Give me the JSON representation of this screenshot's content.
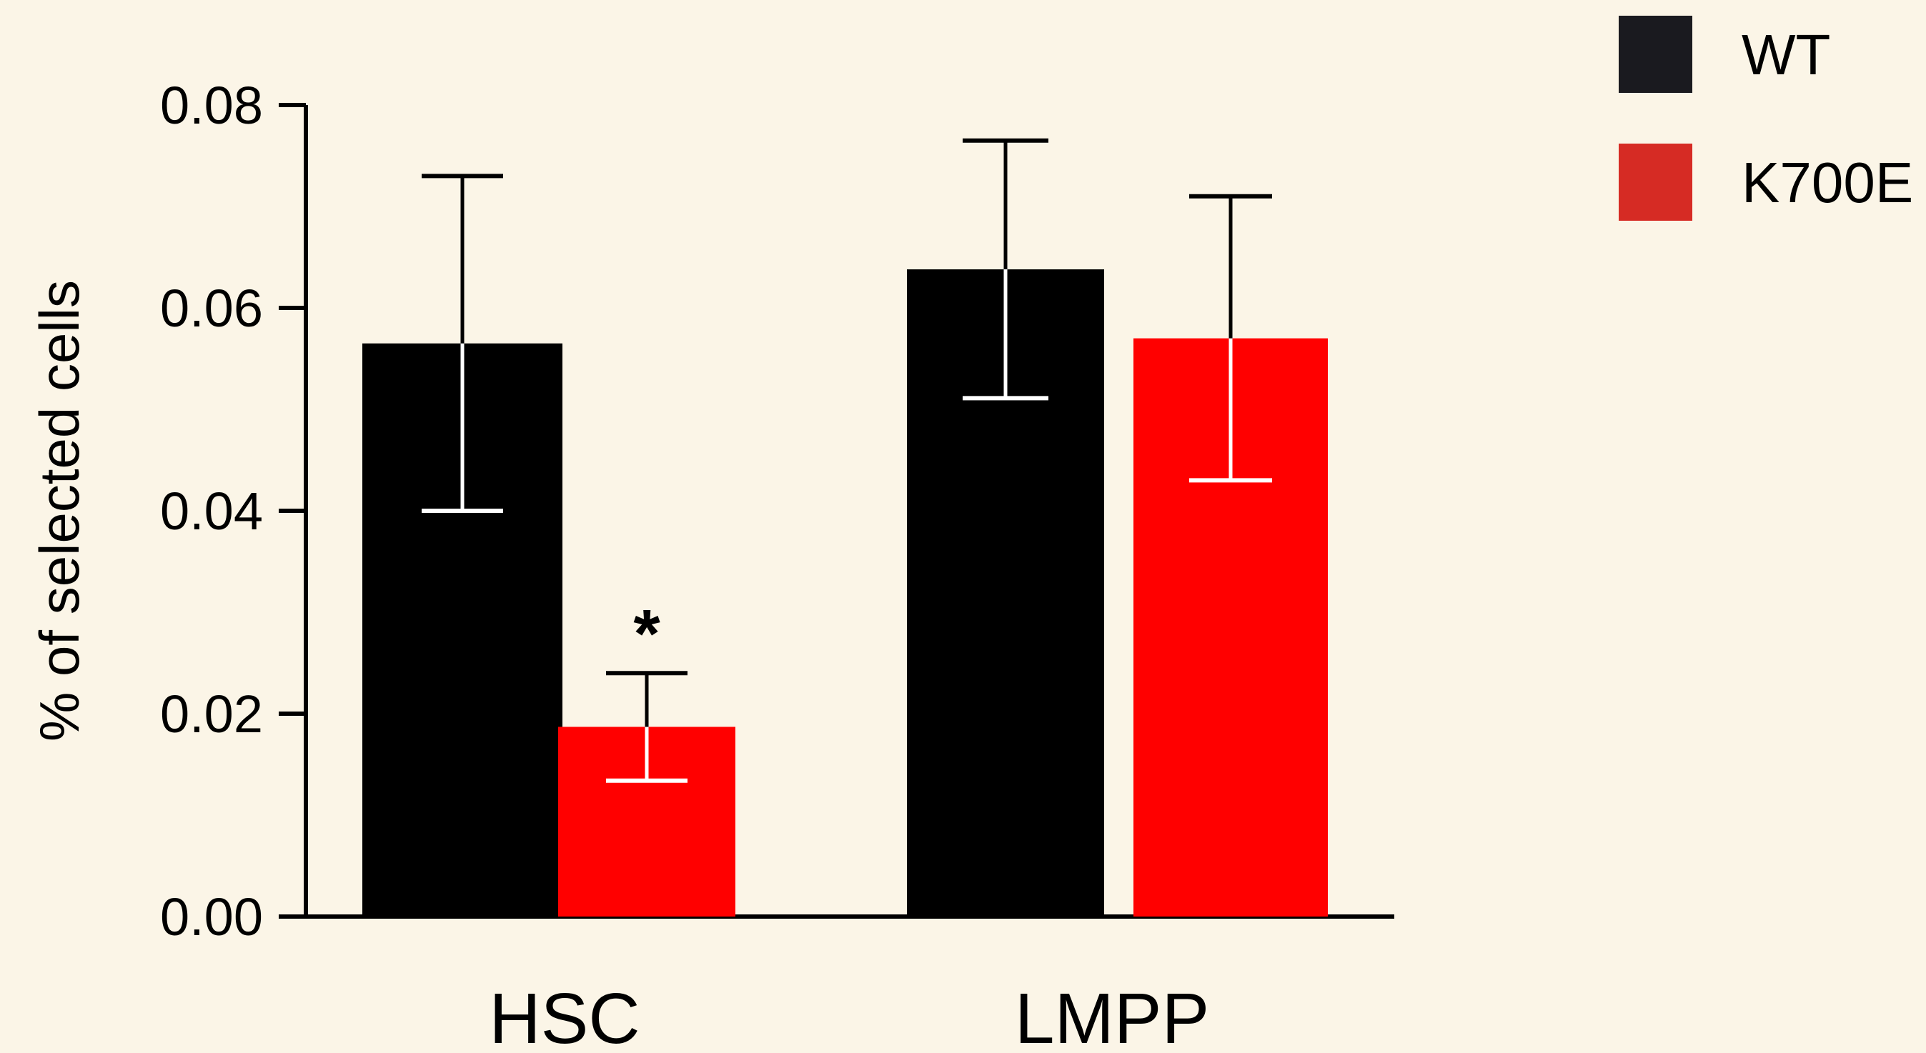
{
  "chart_data": {
    "type": "bar",
    "title": "",
    "xlabel": "",
    "ylabel": "% of selected cells",
    "ylim": [
      0,
      0.08
    ],
    "yticks": [
      "0.00",
      "0.02",
      "0.04",
      "0.06",
      "0.08"
    ],
    "categories": [
      "HSC",
      "LMPP"
    ],
    "series": [
      {
        "name": "WT",
        "color": "#000000",
        "legend_color": "#1a1a1f",
        "values": [
          0.0565,
          0.0638
        ],
        "errors": [
          0.0165,
          0.0127
        ]
      },
      {
        "name": "K700E",
        "color": "#ff0000",
        "legend_color": "#d62b24",
        "values": [
          0.0187,
          0.057
        ],
        "errors": [
          0.0053,
          0.014
        ]
      }
    ],
    "annotations": [
      {
        "text": "*",
        "category": "HSC",
        "series": "K700E"
      }
    ],
    "legend_position": "top-right",
    "grid": false
  }
}
